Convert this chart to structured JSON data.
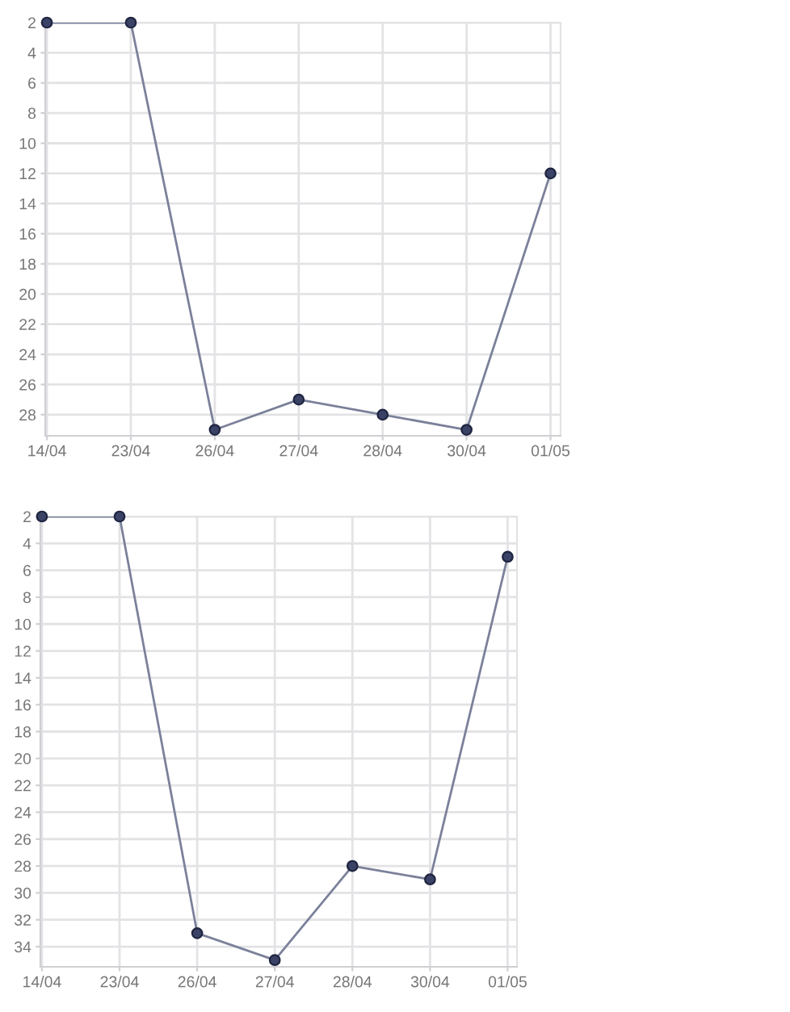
{
  "chart_data": [
    {
      "type": "line",
      "categories": [
        "14/04",
        "23/04",
        "26/04",
        "27/04",
        "28/04",
        "30/04",
        "01/05"
      ],
      "series": [
        {
          "color": "#3a4266",
          "values": [
            2,
            2,
            29,
            27,
            28,
            29,
            12
          ]
        }
      ],
      "ylim": [
        29.4,
        2
      ],
      "yticks": [
        2,
        4,
        6,
        8,
        10,
        12,
        14,
        16,
        18,
        20,
        22,
        24,
        26,
        28
      ],
      "grid": true,
      "marker": "circle",
      "line_style": "solid"
    },
    {
      "type": "line",
      "categories": [
        "14/04",
        "23/04",
        "26/04",
        "27/04",
        "28/04",
        "30/04",
        "01/05"
      ],
      "series": [
        {
          "color": "#3a4266",
          "values": [
            2,
            2,
            33,
            35,
            28,
            29,
            5
          ]
        }
      ],
      "ylim": [
        35.5,
        2
      ],
      "yticks": [
        2,
        4,
        6,
        8,
        10,
        12,
        14,
        16,
        18,
        20,
        22,
        24,
        26,
        28,
        30,
        32,
        34
      ],
      "grid": true,
      "marker": "circle",
      "line_style": "solid"
    }
  ]
}
